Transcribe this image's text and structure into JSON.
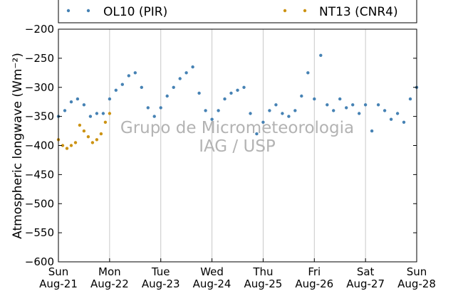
{
  "chart_data": {
    "type": "scatter",
    "ylabel": "Atmospheric longwave (Wm⁻²)",
    "xlabel": "",
    "ylim": [
      -600,
      -200
    ],
    "xlim": [
      "2016-08-21",
      "2016-08-28"
    ],
    "y_ticks": [
      -600,
      -550,
      -500,
      -450,
      -400,
      -350,
      -300,
      -250,
      -200
    ],
    "x_ticks": [
      {
        "day": "Sun",
        "date": "Aug-21"
      },
      {
        "day": "Mon",
        "date": "Aug-22"
      },
      {
        "day": "Tue",
        "date": "Aug-23"
      },
      {
        "day": "Wed",
        "date": "Aug-24"
      },
      {
        "day": "Thu",
        "date": "Aug-25"
      },
      {
        "day": "Fri",
        "date": "Aug-26"
      },
      {
        "day": "Sat",
        "date": "Aug-27"
      },
      {
        "day": "Sun",
        "date": "Aug-28"
      }
    ],
    "grid": {
      "vertical": true,
      "horizontal": false
    },
    "legend_position": "top",
    "watermark": [
      "Grupo de Micrometeorologia",
      "IAG / USP"
    ],
    "series": [
      {
        "name": "OL10 (PIR)",
        "color": "#4682b4",
        "points": [
          [
            "2016-08-21 00:00",
            -350
          ],
          [
            "2016-08-21 03:00",
            -340
          ],
          [
            "2016-08-21 06:00",
            -325
          ],
          [
            "2016-08-21 09:00",
            -320
          ],
          [
            "2016-08-21 12:00",
            -330
          ],
          [
            "2016-08-21 15:00",
            -350
          ],
          [
            "2016-08-21 18:00",
            -345
          ],
          [
            "2016-08-21 21:00",
            -345
          ],
          [
            "2016-08-22 00:00",
            -320
          ],
          [
            "2016-08-22 03:00",
            -305
          ],
          [
            "2016-08-22 06:00",
            -295
          ],
          [
            "2016-08-22 09:00",
            -280
          ],
          [
            "2016-08-22 12:00",
            -275
          ],
          [
            "2016-08-22 15:00",
            -300
          ],
          [
            "2016-08-22 18:00",
            -335
          ],
          [
            "2016-08-22 21:00",
            -350
          ],
          [
            "2016-08-23 00:00",
            -335
          ],
          [
            "2016-08-23 03:00",
            -315
          ],
          [
            "2016-08-23 06:00",
            -300
          ],
          [
            "2016-08-23 09:00",
            -285
          ],
          [
            "2016-08-23 12:00",
            -275
          ],
          [
            "2016-08-23 15:00",
            -265
          ],
          [
            "2016-08-23 18:00",
            -310
          ],
          [
            "2016-08-23 21:00",
            -340
          ],
          [
            "2016-08-24 00:00",
            -355
          ],
          [
            "2016-08-24 03:00",
            -340
          ],
          [
            "2016-08-24 06:00",
            -320
          ],
          [
            "2016-08-24 09:00",
            -310
          ],
          [
            "2016-08-24 12:00",
            -305
          ],
          [
            "2016-08-24 15:00",
            -300
          ],
          [
            "2016-08-24 18:00",
            -345
          ],
          [
            "2016-08-24 21:00",
            -380
          ],
          [
            "2016-08-25 00:00",
            -360
          ],
          [
            "2016-08-25 03:00",
            -340
          ],
          [
            "2016-08-25 06:00",
            -330
          ],
          [
            "2016-08-25 09:00",
            -345
          ],
          [
            "2016-08-25 12:00",
            -350
          ],
          [
            "2016-08-25 15:00",
            -340
          ],
          [
            "2016-08-25 18:00",
            -315
          ],
          [
            "2016-08-25 21:00",
            -275
          ],
          [
            "2016-08-26 00:00",
            -320
          ],
          [
            "2016-08-26 03:00",
            -245
          ],
          [
            "2016-08-26 06:00",
            -330
          ],
          [
            "2016-08-26 09:00",
            -340
          ],
          [
            "2016-08-26 12:00",
            -320
          ],
          [
            "2016-08-26 15:00",
            -335
          ],
          [
            "2016-08-26 18:00",
            -330
          ],
          [
            "2016-08-26 21:00",
            -345
          ],
          [
            "2016-08-27 00:00",
            -330
          ],
          [
            "2016-08-27 03:00",
            -375
          ],
          [
            "2016-08-27 06:00",
            -330
          ],
          [
            "2016-08-27 09:00",
            -340
          ],
          [
            "2016-08-27 12:00",
            -355
          ],
          [
            "2016-08-27 15:00",
            -345
          ],
          [
            "2016-08-27 18:00",
            -360
          ],
          [
            "2016-08-27 21:00",
            -320
          ],
          [
            "2016-08-28 00:00",
            -300
          ]
        ]
      },
      {
        "name": "NT13 (CNR4)",
        "color": "#cc9314",
        "points": [
          [
            "2016-08-21 00:00",
            -390
          ],
          [
            "2016-08-21 02:00",
            -400
          ],
          [
            "2016-08-21 04:00",
            -405
          ],
          [
            "2016-08-21 06:00",
            -400
          ],
          [
            "2016-08-21 08:00",
            -395
          ],
          [
            "2016-08-21 10:00",
            -365
          ],
          [
            "2016-08-21 12:00",
            -375
          ],
          [
            "2016-08-21 14:00",
            -385
          ],
          [
            "2016-08-21 16:00",
            -395
          ],
          [
            "2016-08-21 18:00",
            -390
          ],
          [
            "2016-08-21 20:00",
            -380
          ],
          [
            "2016-08-21 22:00",
            -360
          ],
          [
            "2016-08-22 00:00",
            -345
          ]
        ]
      }
    ]
  }
}
